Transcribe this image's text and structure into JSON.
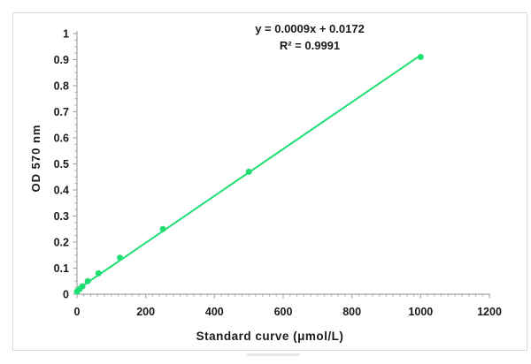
{
  "chart_data": {
    "type": "scatter",
    "title": "",
    "annotation": {
      "equation": "y = 0.0009x + 0.0172",
      "r_squared": "R² = 0.9991"
    },
    "xlabel": "Standard curve (μmol/L)",
    "ylabel": "OD 570 nm",
    "xlim": [
      0,
      1200
    ],
    "ylim": [
      0,
      1
    ],
    "x_ticks": [
      0,
      200,
      400,
      600,
      800,
      1000,
      1200
    ],
    "y_ticks": [
      0,
      0.1,
      0.2,
      0.3,
      0.4,
      0.5,
      0.6,
      0.7,
      0.8,
      0.9,
      1
    ],
    "x_minor_step": 20,
    "y_minor_step": 0.025,
    "grid": false,
    "legend": "none",
    "series": [
      {
        "x": [
          0,
          7.8,
          15.6,
          31.25,
          62.5,
          125,
          250,
          500,
          1000
        ],
        "y": [
          0.01,
          0.02,
          0.03,
          0.05,
          0.08,
          0.14,
          0.25,
          0.47,
          0.91
        ]
      }
    ],
    "trendline": {
      "slope": 0.0009,
      "intercept": 0.0172,
      "x_start": 0,
      "x_end": 1000
    },
    "colors": {
      "series": "#1fdf72",
      "axis": "#a6a6a6",
      "text": "#1a1a1a",
      "frame": "#d9d9d9"
    }
  }
}
